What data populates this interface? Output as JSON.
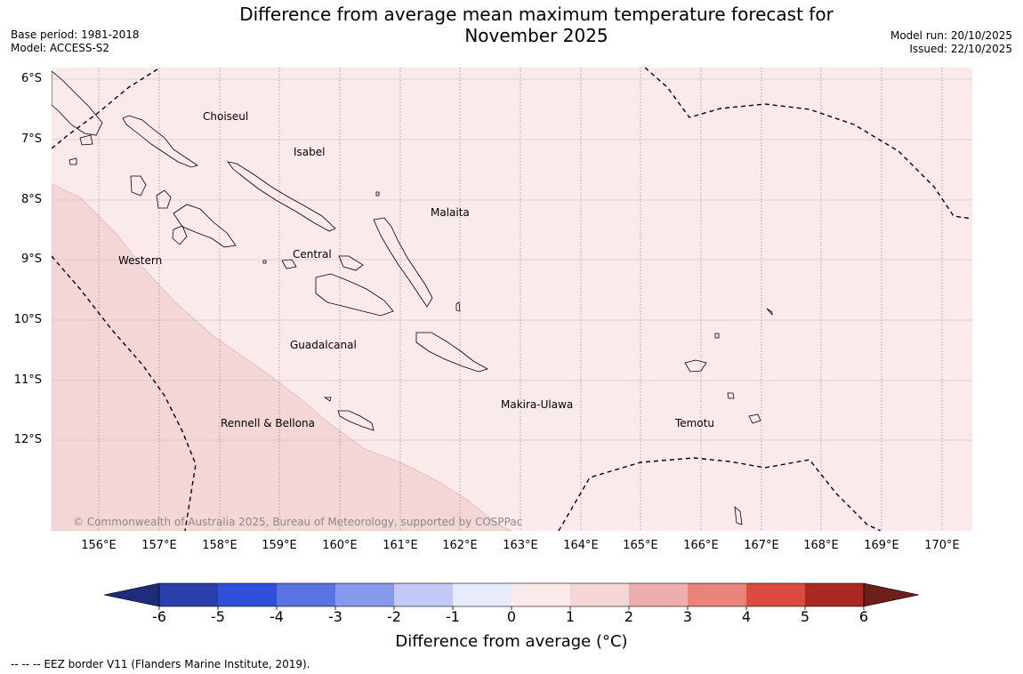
{
  "title": {
    "line1": "Difference from average mean maximum temperature forecast for",
    "line2": "November 2025"
  },
  "meta": {
    "base_period": "Base period: 1981-2018",
    "model": "Model: ACCESS-S2",
    "model_run": "Model run: 20/10/2025",
    "issued": "Issued: 22/10/2025"
  },
  "map": {
    "lat_labels": [
      "6°S",
      "7°S",
      "8°S",
      "9°S",
      "10°S",
      "11°S",
      "12°S"
    ],
    "lon_labels": [
      "156°E",
      "157°E",
      "158°E",
      "159°E",
      "160°E",
      "161°E",
      "162°E",
      "163°E",
      "164°E",
      "165°E",
      "166°E",
      "167°E",
      "168°E",
      "169°E",
      "170°E"
    ],
    "places": {
      "choiseul": "Choiseul",
      "isabel": "Isabel",
      "malaita": "Malaita",
      "western": "Western",
      "central": "Central",
      "guadalcanal": "Guadalcanal",
      "makira": "Makira-Ulawa",
      "temotu": "Temotu",
      "rennell": "Rennell & Bellona"
    },
    "copyright": "© Commonwealth of Australia 2025, Bureau of Meteorology, supported by COSPPac",
    "anomaly_regions": [
      {
        "category": "1 to 2 °C",
        "color": "#f5d6d6"
      },
      {
        "category": "0 to 1 °C",
        "color": "#fbeaea"
      }
    ]
  },
  "colorbar": {
    "ticks": [
      "-6",
      "-5",
      "-4",
      "-3",
      "-2",
      "-1",
      "0",
      "1",
      "2",
      "3",
      "4",
      "5",
      "6"
    ],
    "colors": [
      "#2a3fa8",
      "#3050dc",
      "#5a73e2",
      "#8799ea",
      "#c1c9f4",
      "#e8ebfb",
      "#fbeaea",
      "#f5d6d6",
      "#eeaeae",
      "#e8847c",
      "#dd4a40",
      "#ab2822"
    ],
    "low_extend_color": "#1d2d7a",
    "high_extend_color": "#6f1f1a",
    "label": "Difference from average (°C)"
  },
  "legend_note": "--  --  -- EEZ border V11 (Flanders Marine Institute, 2019)."
}
